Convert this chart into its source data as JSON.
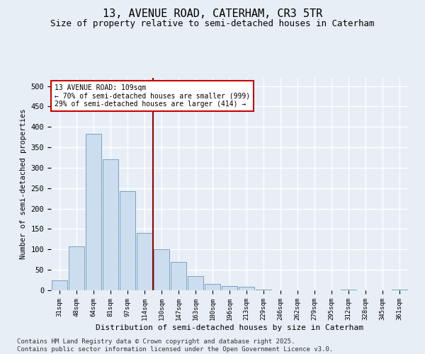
{
  "title": "13, AVENUE ROAD, CATERHAM, CR3 5TR",
  "subtitle": "Size of property relative to semi-detached houses in Caterham",
  "xlabel": "Distribution of semi-detached houses by size in Caterham",
  "ylabel": "Number of semi-detached properties",
  "bins": [
    "31sqm",
    "48sqm",
    "64sqm",
    "81sqm",
    "97sqm",
    "114sqm",
    "130sqm",
    "147sqm",
    "163sqm",
    "180sqm",
    "196sqm",
    "213sqm",
    "229sqm",
    "246sqm",
    "262sqm",
    "279sqm",
    "295sqm",
    "312sqm",
    "328sqm",
    "345sqm",
    "361sqm"
  ],
  "values": [
    25,
    108,
    383,
    320,
    243,
    140,
    100,
    70,
    35,
    15,
    10,
    8,
    1,
    0,
    0,
    0,
    0,
    1,
    0,
    0,
    1
  ],
  "bar_color": "#ccddef",
  "bar_edge_color": "#6699bb",
  "vline_x": 5.5,
  "vline_color": "#990000",
  "annotation_text": "13 AVENUE ROAD: 109sqm\n← 70% of semi-detached houses are smaller (999)\n29% of semi-detached houses are larger (414) →",
  "annotation_box_color": "#ffffff",
  "annotation_box_edge": "#cc0000",
  "ylim": [
    0,
    520
  ],
  "yticks": [
    0,
    50,
    100,
    150,
    200,
    250,
    300,
    350,
    400,
    450,
    500
  ],
  "footer": "Contains HM Land Registry data © Crown copyright and database right 2025.\nContains public sector information licensed under the Open Government Licence v3.0.",
  "background_color": "#e8eef5",
  "plot_background": "#e8eef5",
  "grid_color": "#ffffff",
  "title_fontsize": 11,
  "subtitle_fontsize": 9,
  "axis_fontsize": 7,
  "footer_fontsize": 6.5
}
